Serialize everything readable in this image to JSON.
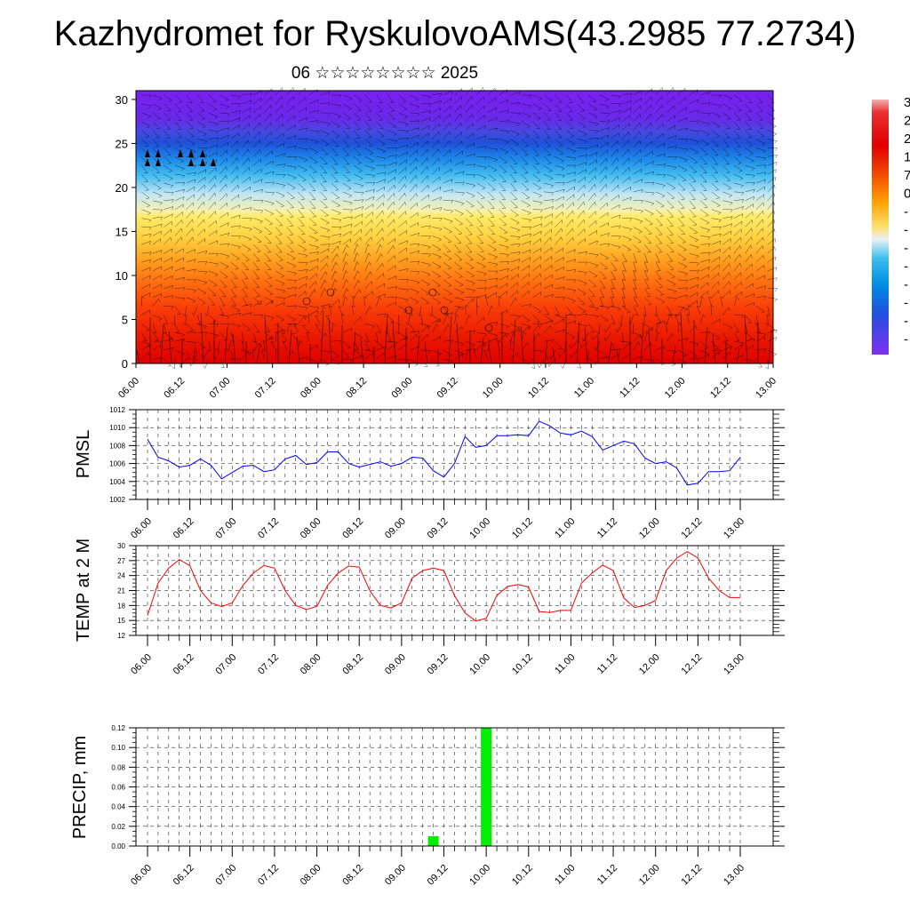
{
  "page": {
    "title": "Kazhydromet for RyskulovoAMS(43.2985 77.2734)",
    "subtitle": "06 ☆☆☆☆☆☆☆☆ 2025"
  },
  "chart_data": [
    {
      "type": "heatmap",
      "title": "",
      "xlabel": "",
      "ylabel": "",
      "x_ticks": [
        "06.00",
        "06.12",
        "07.00",
        "07.12",
        "08.00",
        "08.12",
        "09.00",
        "09.12",
        "10.00",
        "10.12",
        "11.00",
        "11.12",
        "12.00",
        "12.12",
        "13.00"
      ],
      "ylim": [
        0,
        31
      ],
      "y_ticks": [
        0,
        5,
        10,
        15,
        20,
        25,
        30
      ],
      "colorbar": {
        "labels": [
          "3",
          "2",
          "2",
          "1",
          "7",
          "0",
          "-",
          "-",
          "-",
          "-",
          "-",
          "-",
          "-",
          "-"
        ],
        "colors": [
          "#f0a0a0",
          "#e00000",
          "#f04000",
          "#ffa000",
          "#ffe070",
          "#e8f0f8",
          "#00b0f0",
          "#2060e0",
          "#6020e0",
          "#8030f0"
        ]
      },
      "layers": [
        {
          "top_km": 31,
          "value": "purple"
        },
        {
          "top_km": 25,
          "value": "blue"
        },
        {
          "top_km": 20,
          "value": "cyan"
        },
        {
          "top_km": 16.5,
          "value": "yellow"
        },
        {
          "top_km": 13,
          "value": "orange"
        },
        {
          "top_km": 7,
          "value": "red"
        }
      ]
    },
    {
      "type": "line",
      "ylabel": "PMSL",
      "ylim": [
        1002,
        1012
      ],
      "y_ticks": [
        "1002",
        "1004",
        "1006",
        "1008",
        "1010",
        "1012"
      ],
      "x_ticks": [
        "06.00",
        "06.12",
        "07.00",
        "07.12",
        "08.00",
        "08.12",
        "09.00",
        "09.12",
        "10.00",
        "10.12",
        "11.00",
        "11.12",
        "12.00",
        "12.12",
        "13.00"
      ],
      "color": "#0000ff",
      "x": [
        0,
        3,
        6,
        9,
        12,
        15,
        18,
        21,
        24,
        27,
        30,
        33,
        36,
        39,
        42,
        45,
        48,
        51,
        54,
        57,
        60,
        63,
        66,
        69,
        72,
        75,
        78,
        81,
        84,
        87,
        90,
        93,
        96,
        99,
        102,
        105,
        108,
        111,
        114,
        117,
        120,
        123,
        126,
        129,
        132,
        135,
        138,
        141,
        144,
        147,
        150,
        153,
        156,
        159,
        162,
        165,
        168
      ],
      "values": [
        1008.7,
        1006.7,
        1006.3,
        1005.6,
        1005.8,
        1006.5,
        1005.8,
        1004.3,
        1005.0,
        1005.7,
        1005.8,
        1005.1,
        1005.3,
        1006.5,
        1006.9,
        1005.9,
        1006.1,
        1007.3,
        1007.3,
        1006.0,
        1005.6,
        1005.9,
        1006.2,
        1005.7,
        1006.0,
        1006.7,
        1006.6,
        1005.2,
        1004.5,
        1006.0,
        1009.0,
        1007.8,
        1008.0,
        1009.1,
        1009.1,
        1009.2,
        1009.1,
        1010.7,
        1010.2,
        1009.4,
        1009.2,
        1009.6,
        1009.0,
        1007.5,
        1008.0,
        1008.5,
        1008.2,
        1006.6,
        1006.0,
        1006.2,
        1005.5,
        1003.6,
        1003.8,
        1005.1,
        1005.1,
        1005.2,
        1006.7
      ]
    },
    {
      "type": "line",
      "ylabel": "TEMP at 2 M",
      "ylim": [
        12,
        30
      ],
      "y_ticks": [
        "12",
        "15",
        "18",
        "21",
        "24",
        "27",
        "30"
      ],
      "x_ticks": [
        "06.00",
        "06.12",
        "07.00",
        "07.12",
        "08.00",
        "08.12",
        "09.00",
        "09.12",
        "10.00",
        "10.12",
        "11.00",
        "11.12",
        "12.00",
        "12.12",
        "13.00"
      ],
      "color": "#ff0000",
      "x": [
        0,
        3,
        6,
        9,
        12,
        15,
        18,
        21,
        24,
        27,
        30,
        33,
        36,
        39,
        42,
        45,
        48,
        51,
        54,
        57,
        60,
        63,
        66,
        69,
        72,
        75,
        78,
        81,
        84,
        87,
        90,
        93,
        96,
        99,
        102,
        105,
        108,
        111,
        114,
        117,
        120,
        123,
        126,
        129,
        132,
        135,
        138,
        141,
        144,
        147,
        150,
        153,
        156,
        159,
        162,
        165,
        168
      ],
      "values": [
        16.0,
        22.5,
        25.5,
        27.2,
        26.0,
        21.0,
        18.5,
        17.8,
        18.5,
        22.0,
        24.5,
        26.0,
        25.5,
        21.0,
        18.0,
        17.2,
        17.8,
        22.0,
        24.5,
        25.9,
        25.7,
        21.0,
        18.0,
        17.5,
        18.5,
        23.5,
        25.0,
        25.5,
        25.0,
        20.0,
        16.5,
        14.9,
        15.4,
        20.0,
        21.8,
        22.2,
        21.7,
        16.8,
        16.6,
        17.0,
        17.0,
        22.5,
        24.5,
        26.1,
        25.0,
        19.5,
        17.6,
        18.0,
        19.0,
        25.0,
        27.5,
        28.8,
        27.5,
        23.5,
        21.0,
        19.6,
        19.6
      ]
    },
    {
      "type": "bar",
      "ylabel": "PRECIP, mm",
      "ylim": [
        0,
        0.12
      ],
      "y_ticks": [
        "0.00",
        "0.02",
        "0.04",
        "0.06",
        "0.08",
        "0.10",
        "0.12"
      ],
      "x_ticks": [
        "06.00",
        "06.12",
        "07.00",
        "07.12",
        "08.00",
        "08.12",
        "09.00",
        "09.12",
        "10.00",
        "10.12",
        "11.00",
        "11.12",
        "12.00",
        "12.12",
        "13.00"
      ],
      "color": "#00ee00",
      "x": [
        81,
        96
      ],
      "values": [
        0.01,
        0.12
      ]
    }
  ]
}
